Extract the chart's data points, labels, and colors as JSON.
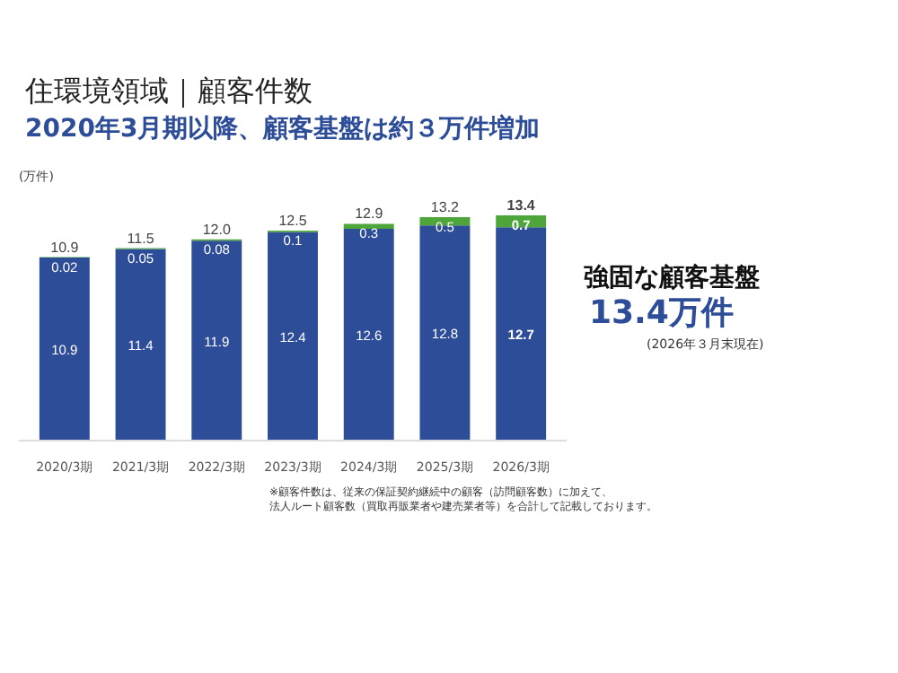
{
  "chart_data": {
    "type": "bar",
    "stacked": true,
    "title": "住環境領域｜顧客件数",
    "subtitle": "2020年3月期以降、顧客基盤は約３万件増加",
    "ylabel": "(万件)",
    "categories": [
      "2020/3期",
      "2021/3期",
      "2022/3期",
      "2023/3期",
      "2024/3期",
      "2025/3期",
      "2026/3期"
    ],
    "series": [
      {
        "color": "#2e4d98",
        "values": [
          10.9,
          11.4,
          11.9,
          12.4,
          12.6,
          12.8,
          12.7
        ]
      },
      {
        "color": "#4ea53a",
        "values": [
          0.02,
          0.05,
          0.08,
          0.1,
          0.3,
          0.5,
          0.7
        ]
      }
    ],
    "tick_labels": "x",
    "grid": false,
    "data_labels": true,
    "totals": [
      "10.9",
      "11.5",
      "12.0",
      "12.5",
      "12.9",
      "13.2",
      "13.4"
    ],
    "annotations": [
      "強固な顧客基盤",
      "13.4万件",
      "(2026年３月末現在)",
      "※顧客件数は、従来の保証契約継続中の顧客（訪問顧客数）に加えて、",
      "法人ルート顧客数（買取再販業者や建売業者等）を合計して記載しております。"
    ]
  }
}
